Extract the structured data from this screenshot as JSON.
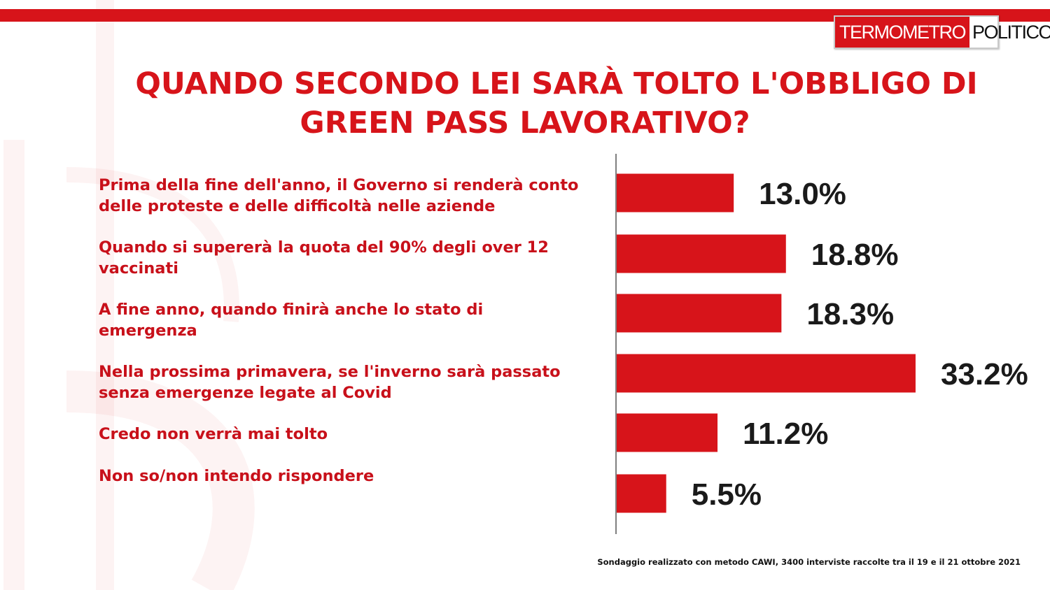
{
  "logo": {
    "part1": "TERMOMETRO",
    "part2": "POLITICO"
  },
  "title_lines": [
    "QUANDO SECONDO LEI SARÀ TOLTO L'OBBLIGO DI",
    "GREEN PASS LAVORATIVO?"
  ],
  "footnote": "Sondaggio realizzato con metodo CAWI, 3400 interviste raccolte tra il 19 e il 21  ottobre 2021",
  "colors": {
    "brand_red": "#d7141a",
    "bar_red": "#d7141a",
    "text_red": "#c8101a"
  },
  "chart_data": {
    "type": "bar",
    "orientation": "horizontal",
    "title": "QUANDO SECONDO LEI SARÀ TOLTO L'OBBLIGO DI GREEN PASS LAVORATIVO?",
    "categories": [
      [
        "Prima della fine dell'anno, il Governo si renderà conto",
        "delle proteste e delle difficoltà  nelle aziende"
      ],
      [
        "Quando si supererà  la quota del 90% degli over 12",
        "vaccinati"
      ],
      [
        "A fine anno, quando finirà  anche lo stato di",
        "emergenza"
      ],
      [
        "Nella prossima primavera, se l'inverno sarà  passato",
        "senza emergenze legate al Covid"
      ],
      [
        "Credo non verrà  mai tolto"
      ],
      [
        "Non so/non intendo rispondere"
      ]
    ],
    "values": [
      13.0,
      18.8,
      18.3,
      33.2,
      11.2,
      5.5
    ],
    "value_labels": [
      "13.0%",
      "18.8%",
      "18.3%",
      "33.2%",
      "11.2%",
      "5.5%"
    ],
    "unit": "%",
    "xlim": [
      0,
      35
    ],
    "grid": false,
    "legend": "none"
  }
}
